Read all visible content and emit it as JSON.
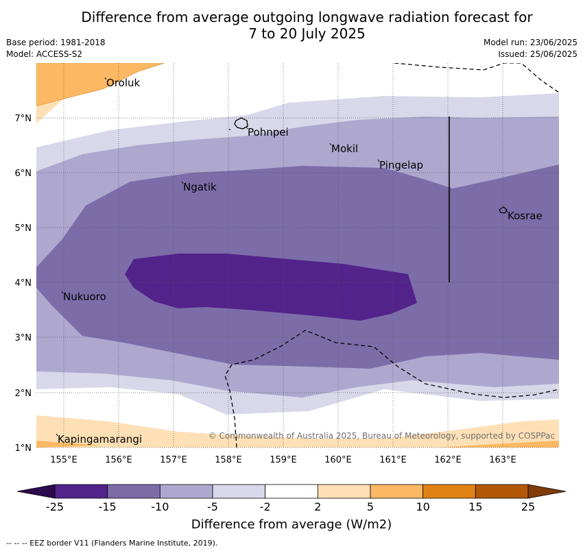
{
  "title_line1": "Difference from average outgoing longwave radiation forecast for",
  "title_line2": "7 to 20 July 2025",
  "base_period": "Base period: 1981-2018",
  "model": "Model: ACCESS-S2",
  "model_run": "Model run: 23/06/2025",
  "issued": "Issued: 25/06/2025",
  "copyright": "© Commonwealth of Australia 2025, Bureau of Meteorology, supported by COSPPac",
  "lon_labels": [
    "155°E",
    "156°E",
    "157°E",
    "158°E",
    "159°E",
    "160°E",
    "161°E",
    "162°E",
    "163°E"
  ],
  "lat_labels": [
    "7°N",
    "6°N",
    "5°N",
    "4°N",
    "3°N",
    "2°N",
    "1°N"
  ],
  "places": [
    "Oroluk",
    "Pohnpei",
    "Mokil",
    "Pingelap",
    "Ngatik",
    "Kosrae",
    "Nukuoro",
    "Kapingamarangi"
  ],
  "colorbar": {
    "labels": [
      "-25",
      "-15",
      "-10",
      "-5",
      "-2",
      "2",
      "5",
      "10",
      "15",
      "25"
    ],
    "colors": [
      "#2d0a4e",
      "#52238a",
      "#7c6da9",
      "#aea8cf",
      "#d8d8ea",
      "#ffffff",
      "#fee0b6",
      "#fdb863",
      "#e08214",
      "#b35806",
      "#7f3b08"
    ],
    "title": "Difference from average (W/m2)"
  },
  "footer": "-- -- -- EEZ border V11 (Flanders Marine Institute, 2019)."
}
